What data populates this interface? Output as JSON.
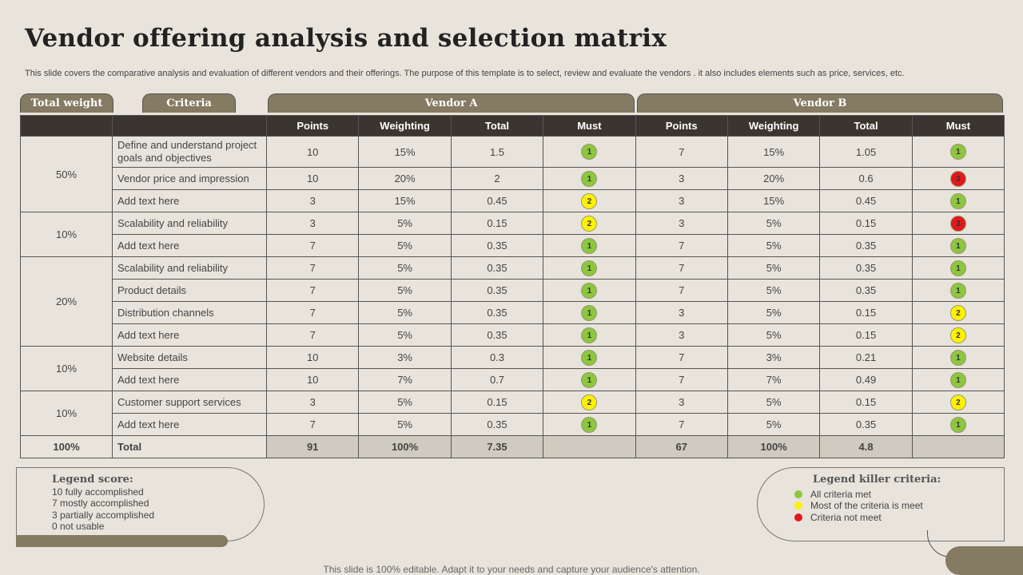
{
  "header": {
    "title": "Vendor offering analysis and selection matrix",
    "subtitle": "This slide covers the comparative analysis and evaluation of different vendors and their offerings. The purpose of this template is to select, review and evaluate the vendors . it also includes elements such as price, services, etc."
  },
  "tabs": [
    "Total weight",
    "Criteria",
    "Vendor A",
    "Vendor B"
  ],
  "table": {
    "columns": [
      "Points",
      "Weighting",
      "Total",
      "Must",
      "Points",
      "Weighting",
      "Total",
      "Must"
    ],
    "groups": [
      {
        "weight": "50%",
        "rows": [
          {
            "criterion": "Define and understand project goals and objectives",
            "vendor_a": [
              10,
              "15%",
              1.5,
              1
            ],
            "vendor_b": [
              7,
              "15%",
              1.05,
              1
            ]
          },
          {
            "criterion": "Vendor price and impression",
            "vendor_a": [
              10,
              "20%",
              2,
              1
            ],
            "vendor_b": [
              3,
              "20%",
              0.6,
              3
            ]
          },
          {
            "criterion": "Add text here",
            "vendor_a": [
              3,
              "15%",
              0.45,
              2
            ],
            "vendor_b": [
              3,
              "15%",
              0.45,
              1
            ]
          }
        ]
      },
      {
        "weight": "10%",
        "rows": [
          {
            "criterion": "Scalability and reliability",
            "vendor_a": [
              3,
              "5%",
              0.15,
              2
            ],
            "vendor_b": [
              3,
              "5%",
              0.15,
              3
            ]
          },
          {
            "criterion": "Add text here",
            "vendor_a": [
              7,
              "5%",
              0.35,
              1
            ],
            "vendor_b": [
              7,
              "5%",
              0.35,
              1
            ]
          }
        ]
      },
      {
        "weight": "20%",
        "rows": [
          {
            "criterion": "Scalability and reliability",
            "vendor_a": [
              7,
              "5%",
              0.35,
              1
            ],
            "vendor_b": [
              7,
              "5%",
              0.35,
              1
            ]
          },
          {
            "criterion": "Product details",
            "vendor_a": [
              7,
              "5%",
              0.35,
              1
            ],
            "vendor_b": [
              7,
              "5%",
              0.35,
              1
            ]
          },
          {
            "criterion": "Distribution channels",
            "vendor_a": [
              7,
              "5%",
              0.35,
              1
            ],
            "vendor_b": [
              3,
              "5%",
              0.15,
              2
            ]
          },
          {
            "criterion": "Add text here",
            "vendor_a": [
              7,
              "5%",
              0.35,
              1
            ],
            "vendor_b": [
              3,
              "5%",
              0.15,
              2
            ]
          }
        ]
      },
      {
        "weight": "10%",
        "rows": [
          {
            "criterion": "Website details",
            "vendor_a": [
              10,
              "3%",
              0.3,
              1
            ],
            "vendor_b": [
              7,
              "3%",
              0.21,
              1
            ]
          },
          {
            "criterion": "Add text here",
            "vendor_a": [
              10,
              "7%",
              0.7,
              1
            ],
            "vendor_b": [
              7,
              "7%",
              0.49,
              1
            ]
          }
        ]
      },
      {
        "weight": "10%",
        "rows": [
          {
            "criterion": "Customer support services",
            "vendor_a": [
              3,
              "5%",
              0.15,
              2
            ],
            "vendor_b": [
              3,
              "5%",
              0.15,
              2
            ]
          },
          {
            "criterion": "Add text here",
            "vendor_a": [
              7,
              "5%",
              0.35,
              1
            ],
            "vendor_b": [
              7,
              "5%",
              0.35,
              1
            ]
          }
        ]
      }
    ],
    "total": {
      "weight": "100%",
      "label": "Total",
      "vendor_a": [
        91,
        "100%",
        7.35
      ],
      "vendor_b": [
        67,
        "100%",
        4.8
      ]
    }
  },
  "legend_score": {
    "title": "Legend score:",
    "items": [
      "10 fully accomplished",
      "7 mostly accomplished",
      "3 partially accomplished",
      "0 not usable"
    ]
  },
  "legend_killer": {
    "title": "Legend killer criteria:",
    "items": [
      {
        "label": "All criteria met",
        "color": "#8dc63f"
      },
      {
        "label": "Most of the criteria is meet",
        "color": "#fff200"
      },
      {
        "label": "Criteria not meet",
        "color": "#e0191b"
      }
    ]
  },
  "footer": "This slide is 100% editable. Adapt it to your needs and capture your audience's attention."
}
